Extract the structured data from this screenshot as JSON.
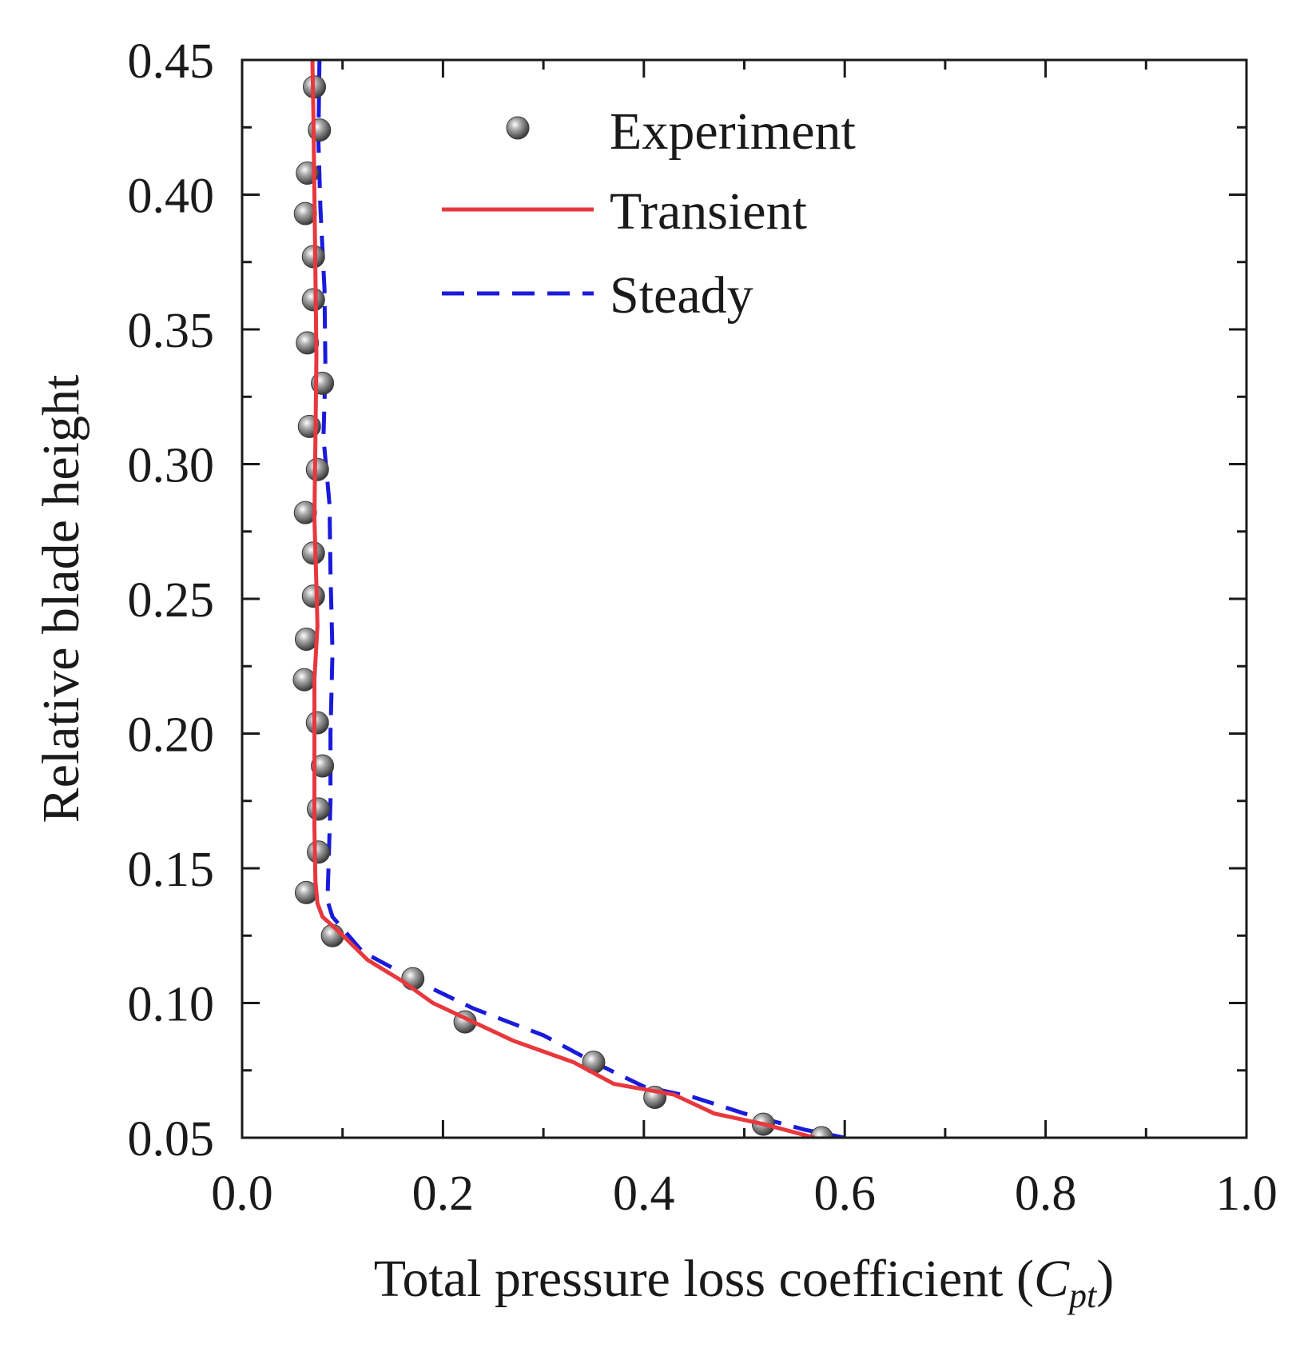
{
  "chart_data": {
    "type": "scatter",
    "xlabel_main": "Total pressure loss coefficient (",
    "xlabel_symbol": "C",
    "xlabel_sub": "pt",
    "xlabel_close": ")",
    "ylabel": "Relative blade height",
    "xlim": [
      0.0,
      1.0
    ],
    "ylim": [
      0.05,
      0.45
    ],
    "x_ticks": [
      "0.0",
      "0.2",
      "0.4",
      "0.6",
      "0.8",
      "1.0"
    ],
    "y_ticks": [
      "0.05",
      "0.10",
      "0.15",
      "0.20",
      "0.25",
      "0.30",
      "0.35",
      "0.40",
      "0.45"
    ],
    "grid": false,
    "legend_position": "top-right",
    "colors": {
      "experiment": "#6e6e6e",
      "transient": "#e8383d",
      "steady": "#1a1adb"
    },
    "series": [
      {
        "name": "Experiment",
        "style": "markers",
        "points": [
          [
            0.072,
            0.44
          ],
          [
            0.077,
            0.424
          ],
          [
            0.065,
            0.408
          ],
          [
            0.063,
            0.393
          ],
          [
            0.071,
            0.377
          ],
          [
            0.071,
            0.361
          ],
          [
            0.065,
            0.345
          ],
          [
            0.08,
            0.33
          ],
          [
            0.067,
            0.314
          ],
          [
            0.075,
            0.298
          ],
          [
            0.063,
            0.282
          ],
          [
            0.071,
            0.267
          ],
          [
            0.071,
            0.251
          ],
          [
            0.064,
            0.235
          ],
          [
            0.062,
            0.22
          ],
          [
            0.075,
            0.204
          ],
          [
            0.08,
            0.188
          ],
          [
            0.076,
            0.172
          ],
          [
            0.076,
            0.156
          ],
          [
            0.064,
            0.141
          ],
          [
            0.09,
            0.125
          ],
          [
            0.17,
            0.109
          ],
          [
            0.222,
            0.093
          ],
          [
            0.35,
            0.078
          ],
          [
            0.411,
            0.065
          ],
          [
            0.519,
            0.055
          ],
          [
            0.577,
            0.05
          ]
        ]
      },
      {
        "name": "Transient",
        "style": "solid",
        "points": [
          [
            0.07,
            0.45
          ],
          [
            0.071,
            0.43
          ],
          [
            0.072,
            0.4
          ],
          [
            0.073,
            0.37
          ],
          [
            0.074,
            0.34
          ],
          [
            0.073,
            0.31
          ],
          [
            0.072,
            0.28
          ],
          [
            0.074,
            0.255
          ],
          [
            0.075,
            0.24
          ],
          [
            0.072,
            0.22
          ],
          [
            0.072,
            0.19
          ],
          [
            0.072,
            0.165
          ],
          [
            0.073,
            0.145
          ],
          [
            0.075,
            0.137
          ],
          [
            0.08,
            0.132
          ],
          [
            0.095,
            0.127
          ],
          [
            0.125,
            0.116
          ],
          [
            0.16,
            0.108
          ],
          [
            0.19,
            0.1
          ],
          [
            0.23,
            0.093
          ],
          [
            0.27,
            0.086
          ],
          [
            0.33,
            0.078
          ],
          [
            0.37,
            0.07
          ],
          [
            0.43,
            0.066
          ],
          [
            0.47,
            0.059
          ],
          [
            0.52,
            0.055
          ],
          [
            0.57,
            0.05
          ]
        ]
      },
      {
        "name": "Steady",
        "style": "dashed",
        "points": [
          [
            0.077,
            0.45
          ],
          [
            0.076,
            0.42
          ],
          [
            0.078,
            0.395
          ],
          [
            0.082,
            0.365
          ],
          [
            0.083,
            0.335
          ],
          [
            0.081,
            0.31
          ],
          [
            0.087,
            0.285
          ],
          [
            0.088,
            0.26
          ],
          [
            0.09,
            0.23
          ],
          [
            0.088,
            0.2
          ],
          [
            0.088,
            0.175
          ],
          [
            0.086,
            0.15
          ],
          [
            0.085,
            0.138
          ],
          [
            0.09,
            0.132
          ],
          [
            0.12,
            0.119
          ],
          [
            0.18,
            0.107
          ],
          [
            0.23,
            0.098
          ],
          [
            0.3,
            0.088
          ],
          [
            0.35,
            0.078
          ],
          [
            0.4,
            0.069
          ],
          [
            0.45,
            0.065
          ],
          [
            0.5,
            0.059
          ],
          [
            0.56,
            0.053
          ],
          [
            0.6,
            0.05
          ]
        ]
      }
    ]
  }
}
